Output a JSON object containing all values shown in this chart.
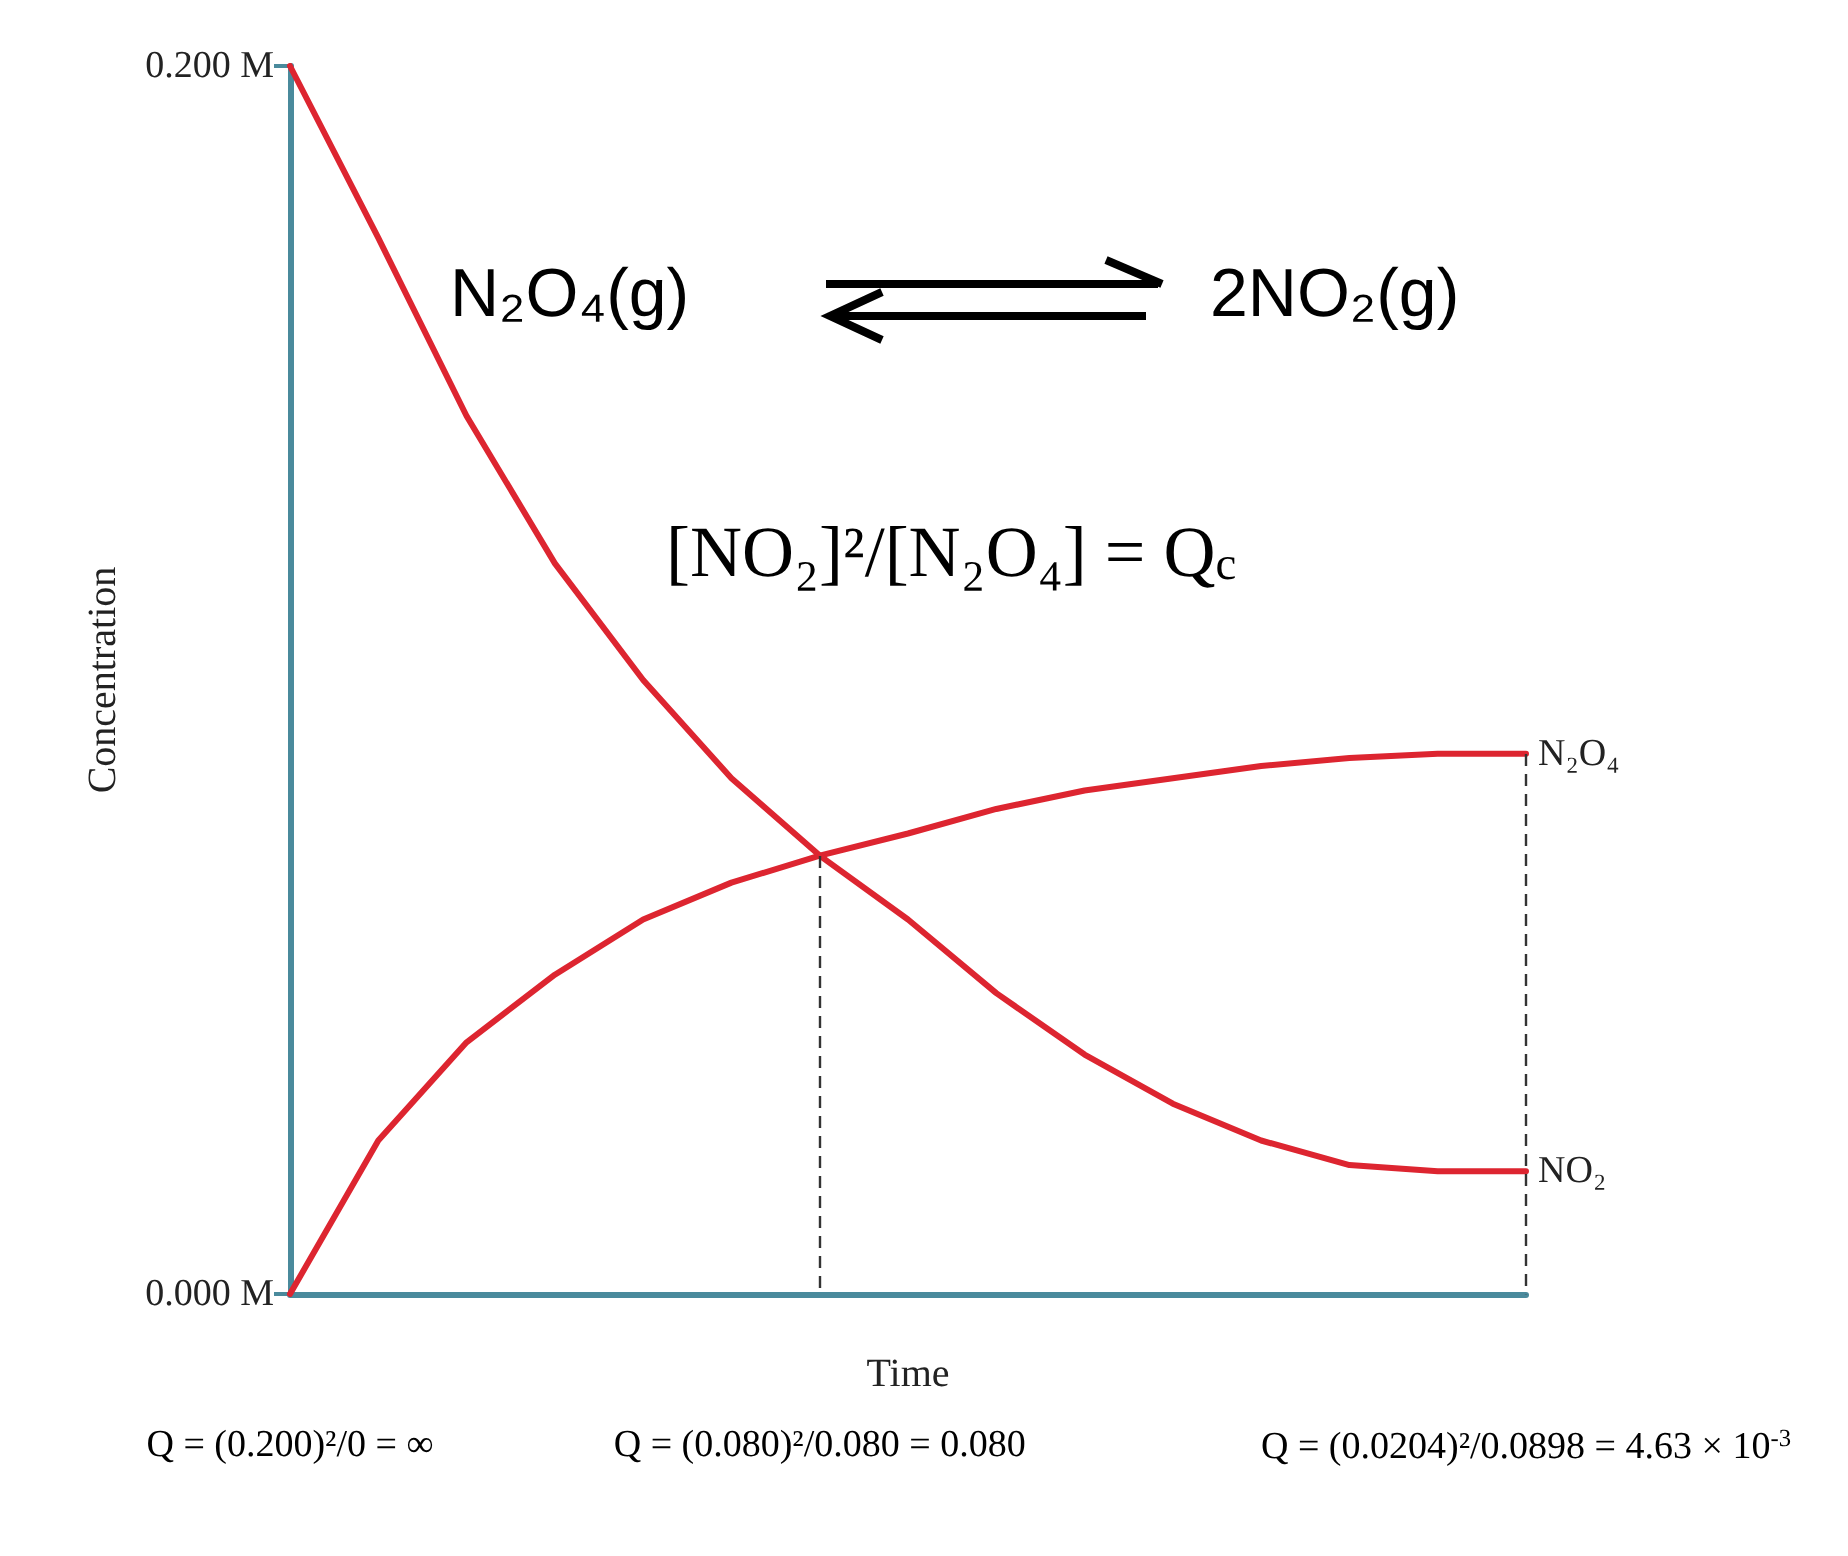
{
  "chart_data": {
    "type": "line",
    "xlabel": "Time",
    "ylabel": "Concentration",
    "categories": [
      null,
      null,
      null,
      null,
      null,
      null,
      null,
      null,
      null,
      null,
      null,
      null,
      null,
      null,
      null
    ],
    "series": [
      {
        "name": "N₂O₄",
        "color": "#dd2530",
        "values": [
          0,
          0.025,
          0.041,
          0.052,
          0.061,
          0.067,
          0.0714,
          0.075,
          0.079,
          0.082,
          0.084,
          0.086,
          0.0873,
          0.088,
          0.088
        ]
      },
      {
        "name": "NO₂",
        "color": "#dd2530",
        "values": [
          0.2,
          0.172,
          0.143,
          0.119,
          0.1,
          0.084,
          0.0714,
          0.061,
          0.049,
          0.039,
          0.031,
          0.025,
          0.021,
          0.02,
          0.02
        ]
      }
    ],
    "ylim": [
      0,
      0.2
    ],
    "yticks": [
      {
        "value": 0,
        "label": "0.000 M"
      },
      {
        "value": 0.2,
        "label": "0.200 M"
      }
    ],
    "marker": "none",
    "line_style": "solid",
    "grid": false,
    "legend": false,
    "annotations": [
      "N₂O₄(g)",
      "2NO₂(g)",
      "[NO₂]²/[N₂O₄] = Q$_{c}$",
      "Q = (0.200)²/0 = ∞",
      "Q = (0.080)²/0.080 = 0.080",
      "Q = (0.0204)²/0.0898 = 4.63 × 10$^{-3}$"
    ]
  }
}
